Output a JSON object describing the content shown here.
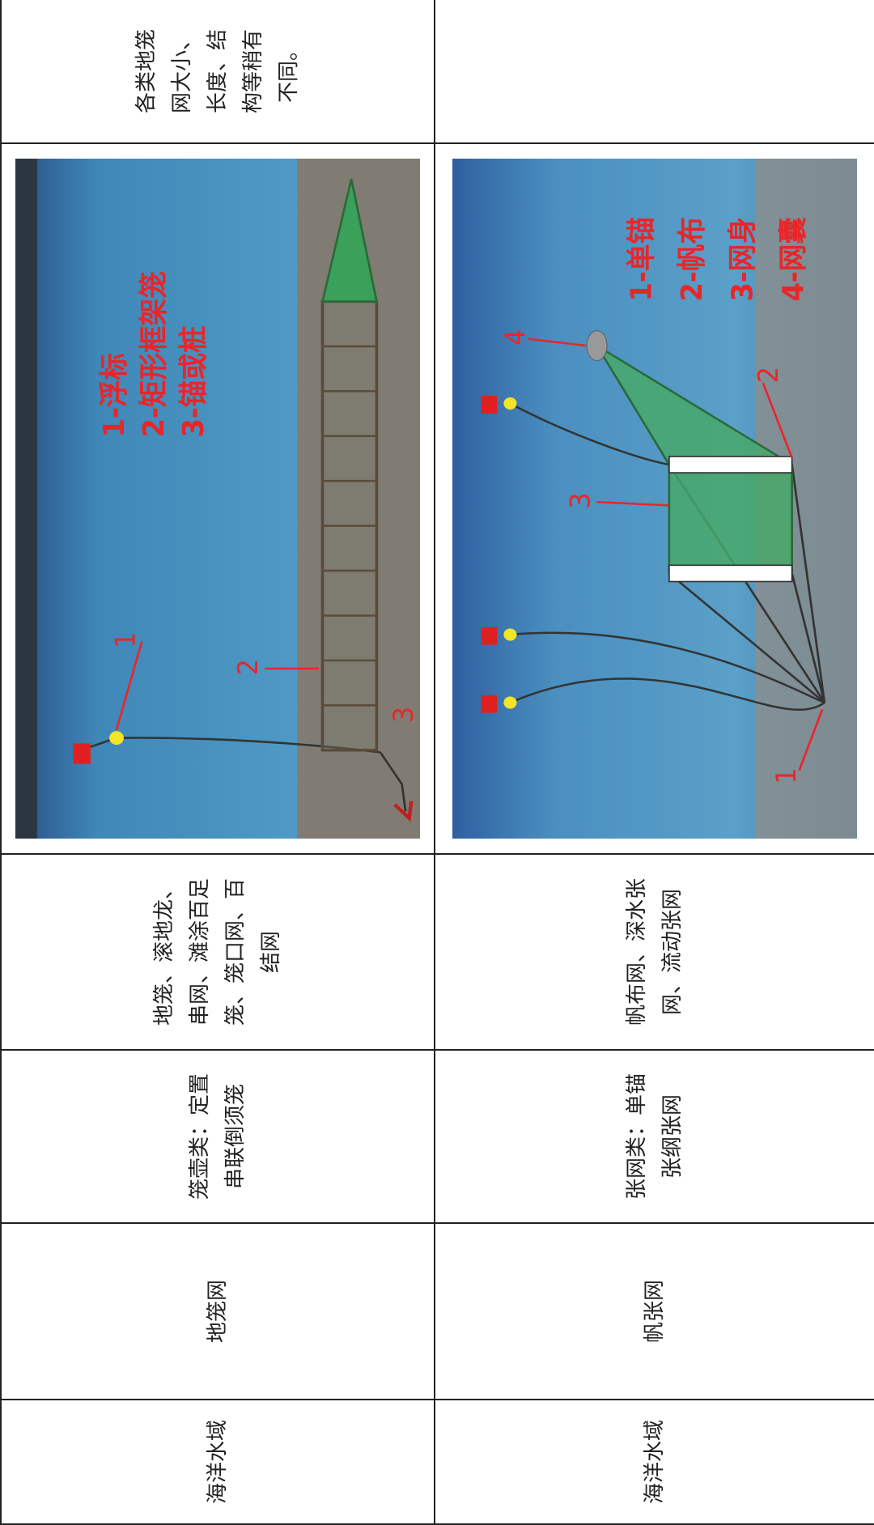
{
  "table": {
    "rows": [
      {
        "area": "海洋水域",
        "name": "地笼网",
        "category": "笼壶类：定置串联倒须笼",
        "variants": "地笼、滚地龙、串网、滩涂百足笼、笼口网、百结网",
        "figure": {
          "legend": [
            "1-浮标",
            "2-矩形框架笼",
            "3-锚或桩"
          ],
          "callouts": [
            "1",
            "2",
            "3"
          ]
        },
        "note": "各类地笼网大小、长度、结构等稍有不同。"
      },
      {
        "area": "海洋水域",
        "name": "帆张网",
        "category": "张网类：单锚张纲张网",
        "variants": "帆布网、深水张网、流动张网",
        "figure": {
          "legend": [
            "1-单锚",
            "2-帆布",
            "3-网身",
            "4-网囊"
          ],
          "callouts": [
            "1",
            "2",
            "3",
            "4"
          ]
        }
      }
    ]
  }
}
